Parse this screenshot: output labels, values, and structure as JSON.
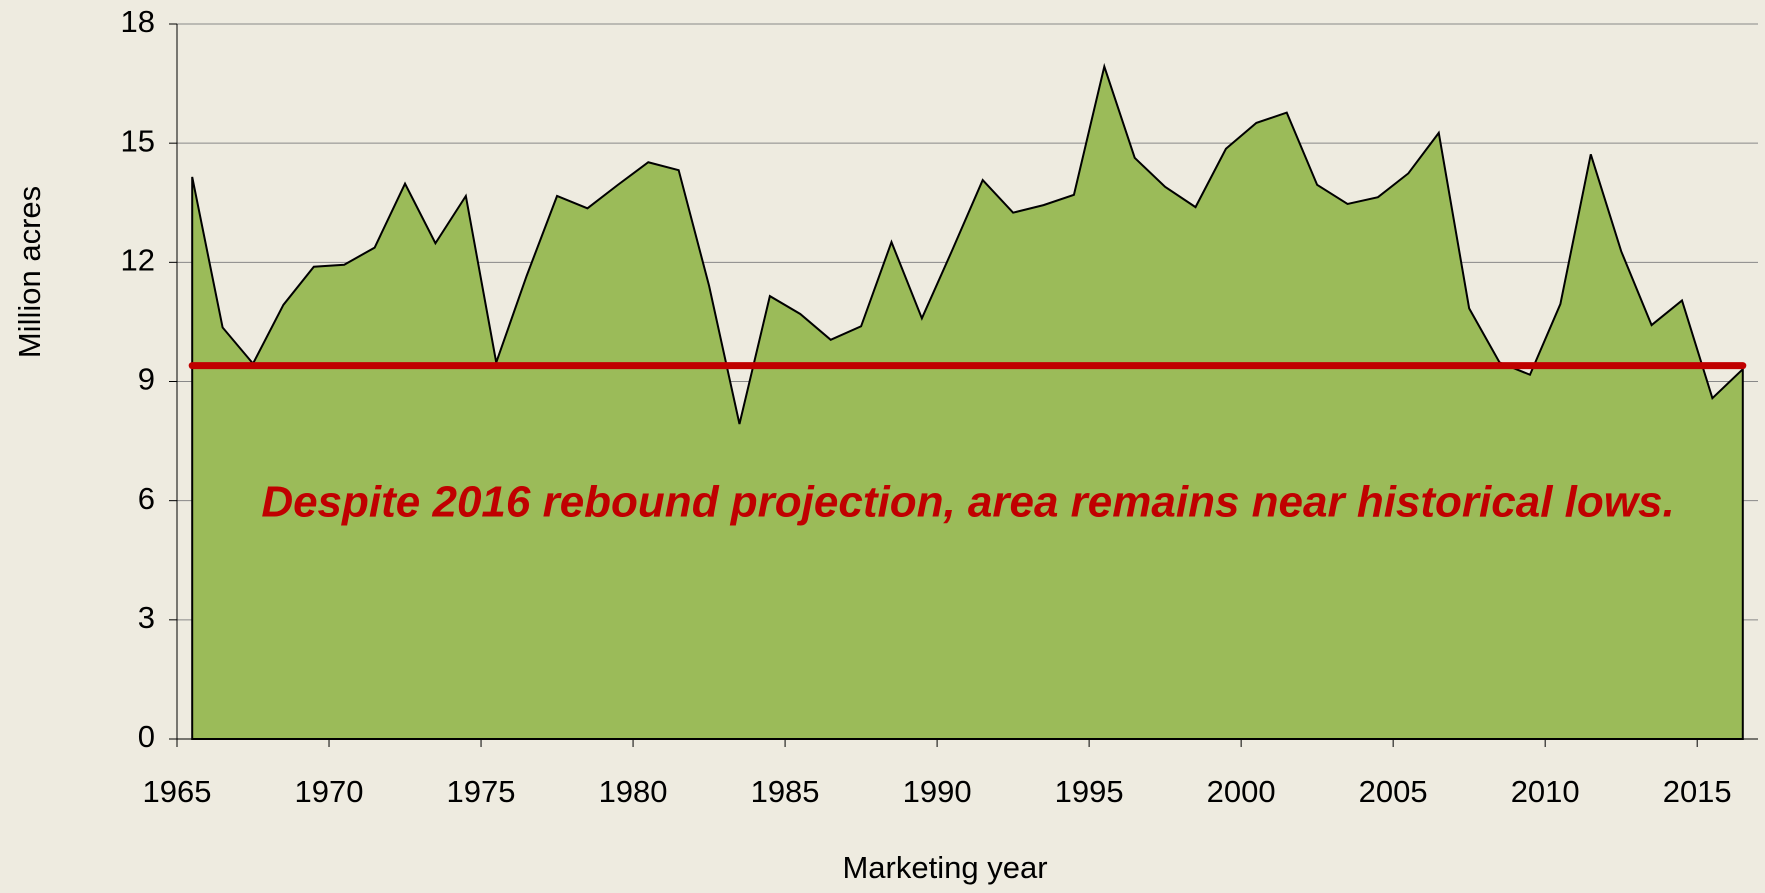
{
  "chart_data": {
    "type": "area",
    "y_axis_label": "Million acres",
    "x_axis_label": "Marketing year",
    "annotation": "Despite 2016 rebound projection, area remains near historical lows.",
    "categories": [
      "1965",
      null,
      null,
      null,
      null,
      "1970",
      null,
      null,
      null,
      null,
      "1975",
      null,
      null,
      null,
      null,
      "1980",
      null,
      null,
      null,
      null,
      "1985",
      null,
      null,
      null,
      null,
      "1990",
      null,
      null,
      null,
      null,
      "1995",
      null,
      null,
      null,
      null,
      "2000",
      null,
      null,
      null,
      null,
      "2005",
      null,
      null,
      null,
      null,
      "2010",
      null,
      null,
      null,
      null,
      "2015",
      null
    ],
    "series": [
      {
        "color": "#9bbb59",
        "values": [
          14.15,
          10.36,
          9.45,
          10.93,
          11.89,
          11.94,
          12.37,
          13.98,
          12.48,
          13.67,
          9.48,
          11.66,
          13.67,
          13.36,
          13.95,
          14.52,
          14.32,
          11.41,
          7.93,
          11.15,
          10.7,
          10.05,
          10.39,
          12.51,
          10.59,
          12.31,
          14.07,
          13.25,
          13.44,
          13.7,
          16.93,
          14.63,
          13.9,
          13.39,
          14.86,
          15.51,
          15.77,
          13.95,
          13.47,
          13.64,
          14.24,
          15.26,
          10.84,
          9.48,
          9.17,
          10.95,
          14.72,
          12.28,
          10.42,
          11.04,
          8.58,
          9.31
        ]
      }
    ],
    "reference_line": {
      "value": 9.4,
      "color": "#c00000"
    },
    "ylim": [
      0,
      18
    ],
    "yticks": [
      0,
      3,
      6,
      9,
      12,
      15,
      18
    ],
    "grid": true
  }
}
